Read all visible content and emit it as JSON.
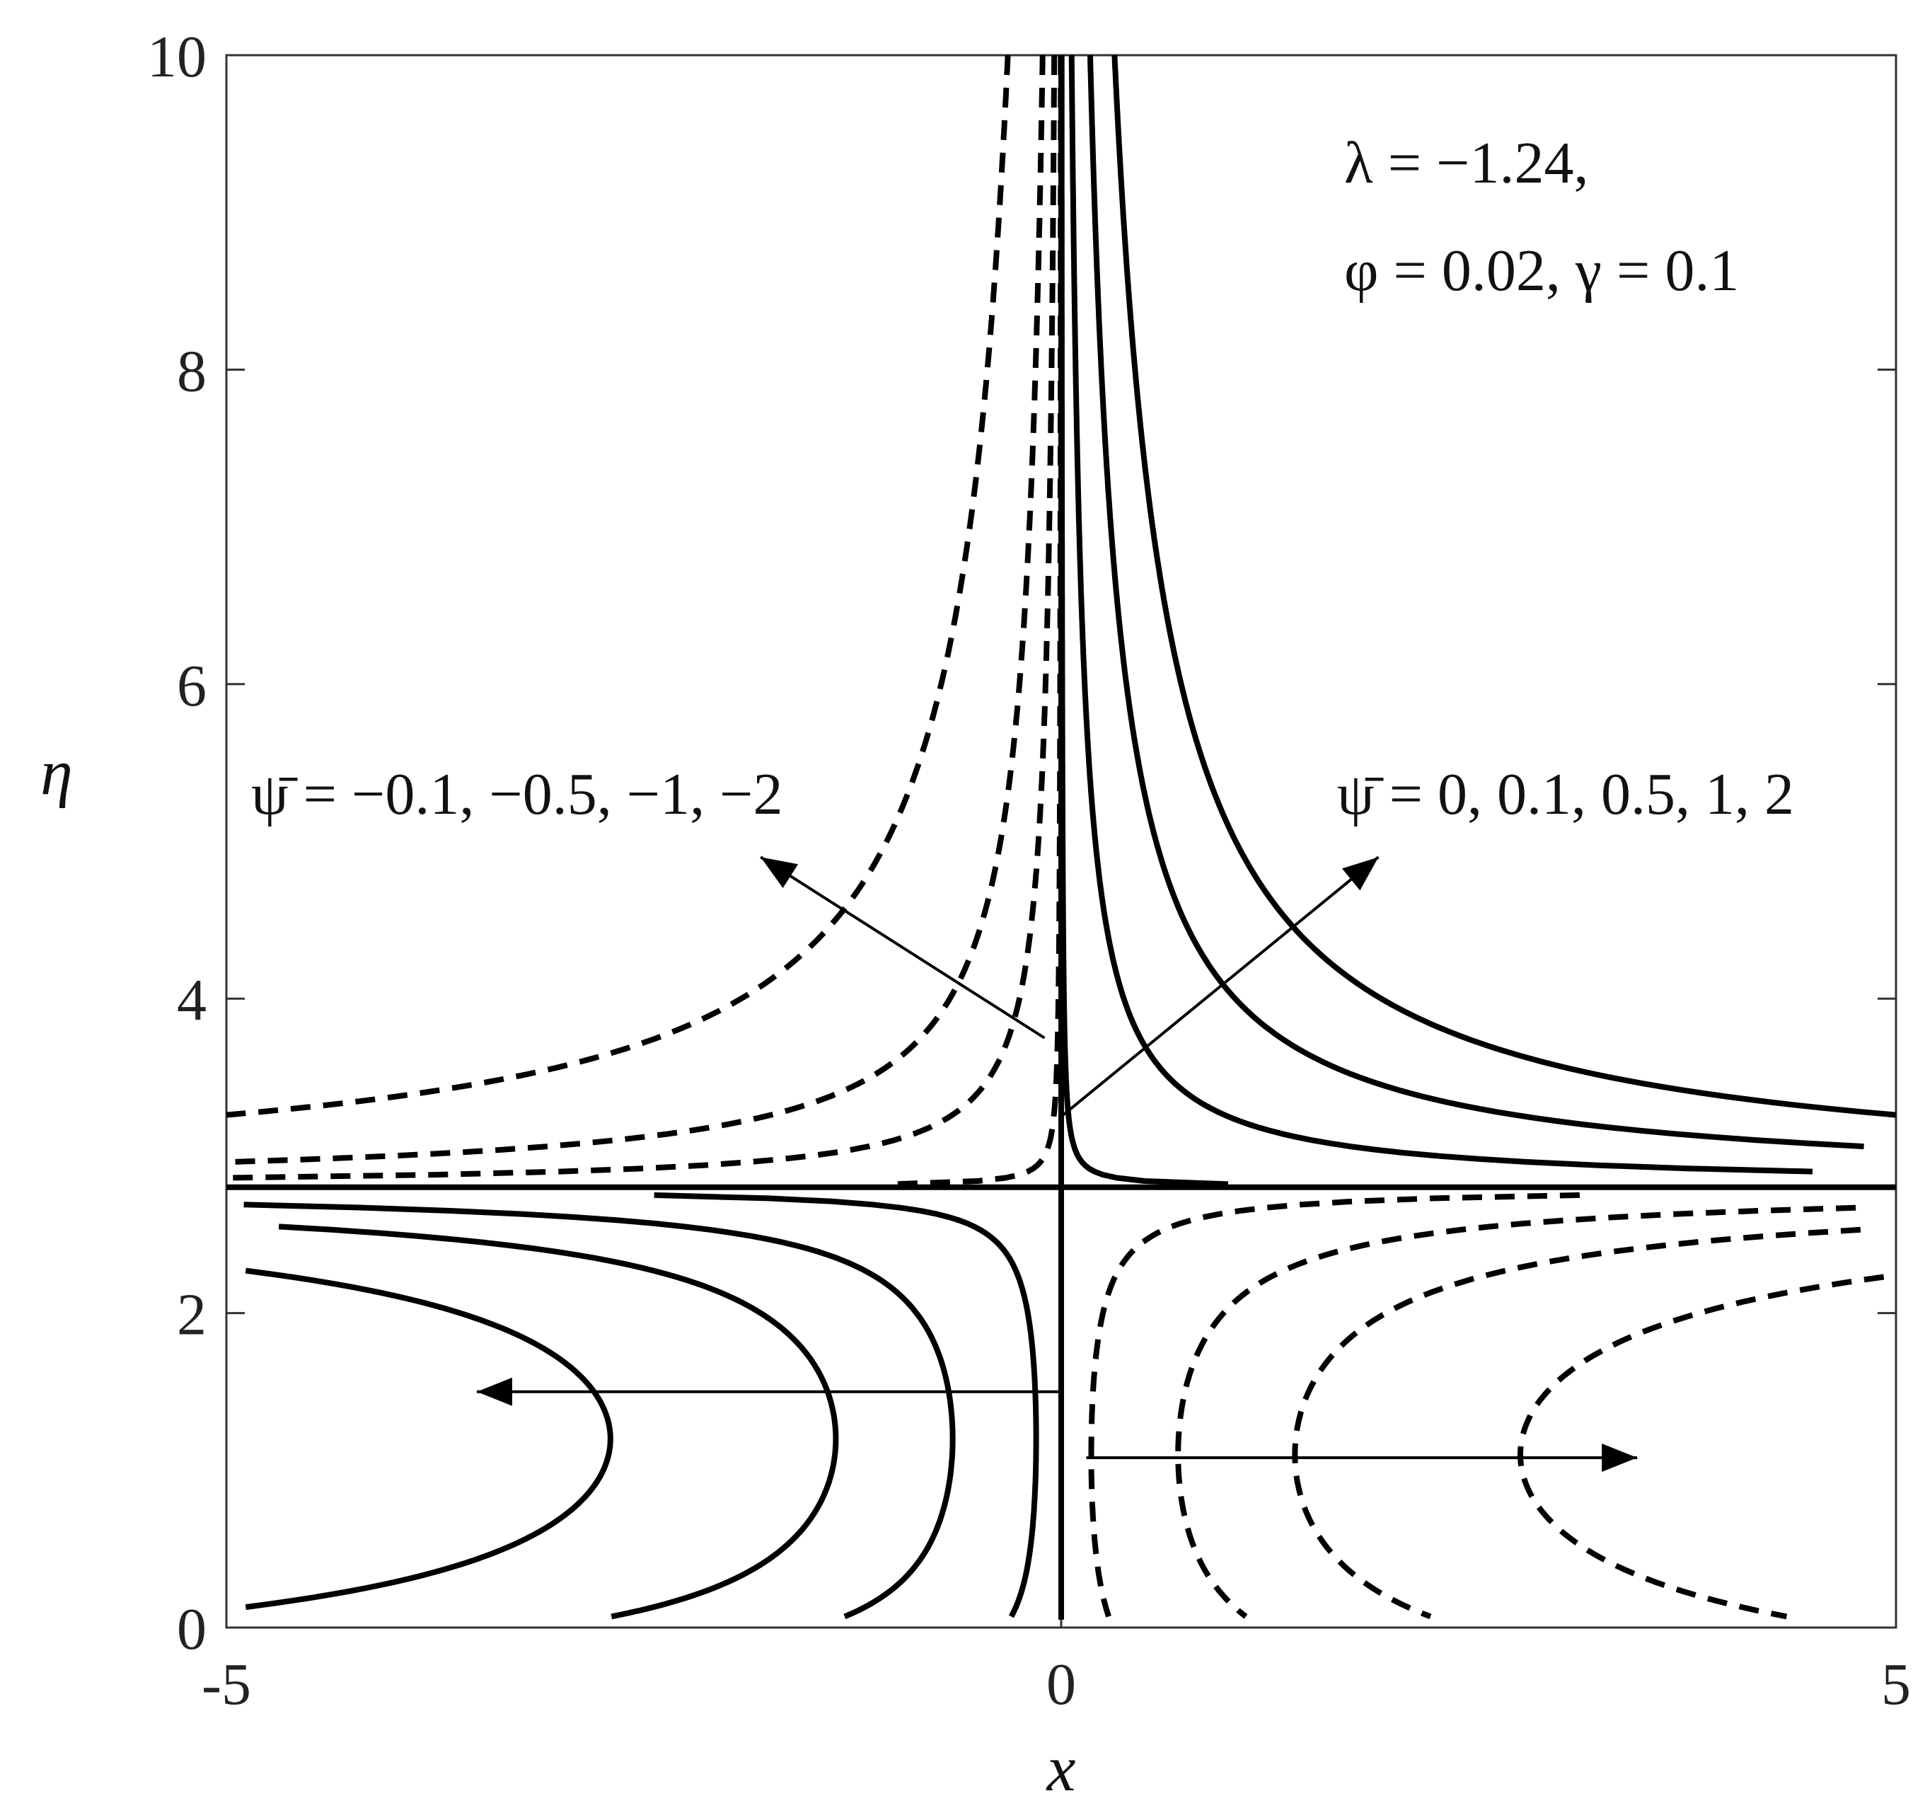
{
  "chart_data": {
    "type": "line",
    "xlabel": "x",
    "ylabel": "η",
    "xlim": [
      -5,
      5
    ],
    "ylim": [
      0,
      10
    ],
    "xticks": [
      "-5",
      "0",
      "5"
    ],
    "yticks": [
      "0",
      "2",
      "4",
      "6",
      "8",
      "10"
    ],
    "grid": false,
    "params_line1": "λ = −1.24,",
    "params_line2": "φ = 0.02, γ = 0.1",
    "annotation_negative": "ψ̄ = −0.1, −0.5, −1, −2",
    "annotation_positive": "ψ̄ = 0, 0.1, 0.5, 1, 2",
    "separatrix": {
      "eta": 2.8,
      "x": 0
    },
    "series": [
      {
        "psi": 0,
        "style": "solid"
      },
      {
        "psi": 0.1,
        "style": "solid"
      },
      {
        "psi": 0.5,
        "style": "solid"
      },
      {
        "psi": 1,
        "style": "solid"
      },
      {
        "psi": 2,
        "style": "solid"
      },
      {
        "psi": -0.1,
        "style": "dashed"
      },
      {
        "psi": -0.5,
        "style": "dashed"
      },
      {
        "psi": -1,
        "style": "dashed"
      },
      {
        "psi": -2,
        "style": "dashed"
      }
    ],
    "upper_branch": {
      "solid_x_at_top": [
        0.12,
        0.32
      ],
      "solid_eta_at_x5": [
        2.9,
        3.04,
        3.28
      ],
      "dashed_x_at_top": [
        -0.1,
        -0.3,
        -0.55
      ],
      "dashed_eta_at_xm5": [
        2.86,
        2.94,
        3.04,
        3.28
      ]
    },
    "lower_branch": {
      "solid_turn_x": [
        -0.15,
        -0.65,
        -1.35,
        -2.7
      ],
      "solid_turn_eta": 1.2,
      "dashed_turn_x": [
        0.18,
        0.7,
        1.4,
        2.75
      ],
      "dashed_turn_eta": 1.1
    },
    "arrows": [
      {
        "from": [
          -0.1,
          3.75
        ],
        "to": [
          -1.8,
          4.9
        ]
      },
      {
        "from": [
          0.0,
          3.25
        ],
        "to": [
          1.9,
          4.9
        ]
      },
      {
        "from": [
          0.0,
          1.5
        ],
        "to": [
          -3.5,
          1.5
        ]
      },
      {
        "from": [
          0.15,
          1.08
        ],
        "to": [
          3.45,
          1.08
        ]
      }
    ]
  }
}
